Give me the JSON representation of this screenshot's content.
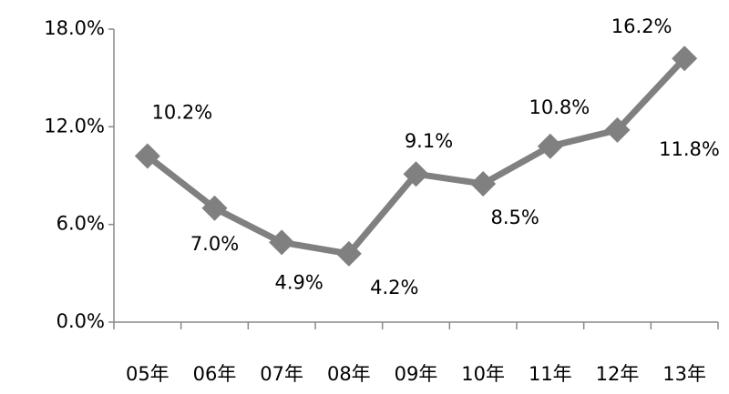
{
  "chart_data": {
    "type": "line",
    "categories": [
      "05年",
      "06年",
      "07年",
      "08年",
      "09年",
      "10年",
      "11年",
      "12年",
      "13年"
    ],
    "series": [
      {
        "color": "#808080",
        "values": [
          10.2,
          7.0,
          4.9,
          4.2,
          9.1,
          8.5,
          10.8,
          11.8,
          16.2
        ],
        "value_labels": [
          "10.2%",
          "7.0%",
          "4.9%",
          "4.2%",
          "9.1%",
          "8.5%",
          "10.8%",
          "11.8%",
          "16.2%"
        ]
      }
    ],
    "ylim": [
      0,
      18
    ],
    "yticks": [
      {
        "value": 0,
        "label": "0.0%"
      },
      {
        "value": 6,
        "label": "6.0%"
      },
      {
        "value": 12,
        "label": "12.0%"
      },
      {
        "value": 18,
        "label": "18.0%"
      }
    ],
    "grid": false
  }
}
